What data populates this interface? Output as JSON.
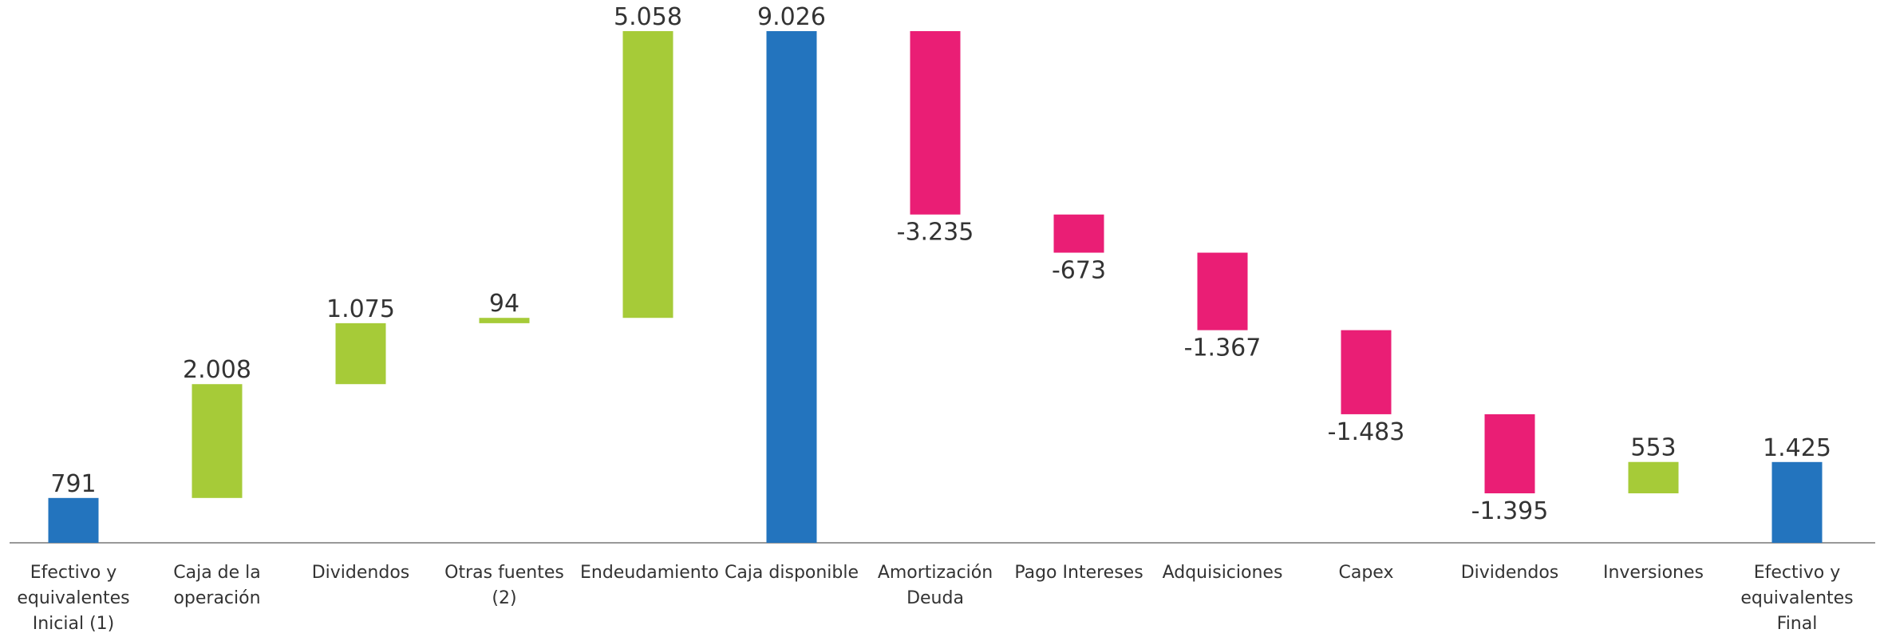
{
  "chart_data": {
    "type": "waterfall",
    "categories": [
      "Efectivo y equivalentes Inicial (1)",
      "Caja de la operación",
      "Dividendos",
      "Otras fuentes (2)",
      "Endeudamiento",
      "Caja disponible",
      "Amortización Deuda",
      "Pago Intereses",
      "Adquisiciones",
      "Capex",
      "Dividendos",
      "Inversiones",
      "Efectivo y equivalentes Final"
    ],
    "values": [
      791,
      2008,
      1075,
      94,
      5058,
      9026,
      -3235,
      -673,
      -1367,
      -1483,
      -1395,
      553,
      1425
    ],
    "value_labels": [
      "791",
      "2.008",
      "1.075",
      "94",
      "5.058",
      "9.026",
      "-3.235",
      "-673",
      "-1.367",
      "-1.483",
      "-1.395",
      "553",
      "1.425"
    ],
    "is_total": [
      true,
      false,
      false,
      false,
      false,
      true,
      false,
      false,
      false,
      false,
      false,
      false,
      true
    ],
    "colors": {
      "total": "#2374be",
      "increase": "#a6cb38",
      "decrease": "#ea1e75"
    }
  }
}
